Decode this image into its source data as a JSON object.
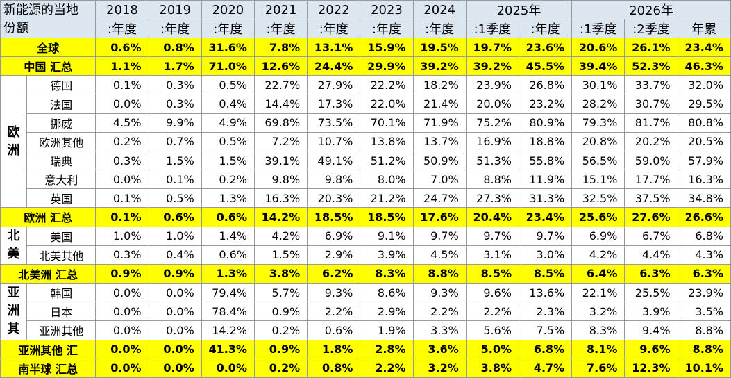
{
  "table": {
    "header": {
      "corner": [
        "新能源的当地",
        "份额"
      ],
      "groups": [
        {
          "label": "2018",
          "subs": [
            ":年度"
          ]
        },
        {
          "label": "2019",
          "subs": [
            ":年度"
          ]
        },
        {
          "label": "2020",
          "subs": [
            ":年度"
          ]
        },
        {
          "label": "2021",
          "subs": [
            ":年度"
          ]
        },
        {
          "label": "2022",
          "subs": [
            ":年度"
          ]
        },
        {
          "label": "2023",
          "subs": [
            ":年度"
          ]
        },
        {
          "label": "2024",
          "subs": [
            ":年度"
          ]
        },
        {
          "label": "2025年",
          "subs": [
            ":1季度",
            ":年度"
          ]
        },
        {
          "label": "2026年",
          "subs": [
            ":1季度",
            ":2季度",
            "年累"
          ]
        }
      ]
    },
    "body": [
      {
        "label": "全球",
        "highlight": true,
        "values": [
          "0.6%",
          "0.8%",
          "31.6%",
          "7.8%",
          "13.1%",
          "15.9%",
          "19.5%",
          "19.7%",
          "23.6%",
          "20.6%",
          "26.1%",
          "23.4%"
        ]
      },
      {
        "label": "中国 汇总",
        "highlight": true,
        "values": [
          "1.1%",
          "1.7%",
          "71.0%",
          "12.6%",
          "24.4%",
          "29.9%",
          "39.2%",
          "39.2%",
          "45.5%",
          "39.4%",
          "52.3%",
          "46.3%"
        ]
      },
      {
        "group": "欧洲",
        "rows": [
          {
            "label": "德国",
            "values": [
              "0.1%",
              "0.3%",
              "0.5%",
              "22.7%",
              "27.9%",
              "22.2%",
              "18.2%",
              "23.9%",
              "26.8%",
              "30.1%",
              "33.7%",
              "32.0%"
            ]
          },
          {
            "label": "法国",
            "values": [
              "0.0%",
              "0.3%",
              "0.4%",
              "14.4%",
              "17.3%",
              "22.0%",
              "21.4%",
              "20.0%",
              "23.2%",
              "28.2%",
              "30.7%",
              "29.5%"
            ]
          },
          {
            "label": "挪威",
            "values": [
              "4.5%",
              "9.9%",
              "4.9%",
              "69.8%",
              "73.5%",
              "70.1%",
              "71.9%",
              "75.2%",
              "80.9%",
              "79.3%",
              "81.7%",
              "80.8%"
            ]
          },
          {
            "label": "欧洲其他",
            "values": [
              "0.2%",
              "0.7%",
              "0.5%",
              "7.2%",
              "10.7%",
              "13.8%",
              "13.7%",
              "16.9%",
              "18.8%",
              "20.8%",
              "20.2%",
              "20.5%"
            ]
          },
          {
            "label": "瑞典",
            "values": [
              "0.3%",
              "1.5%",
              "1.5%",
              "39.1%",
              "49.1%",
              "51.2%",
              "50.9%",
              "51.3%",
              "55.8%",
              "56.5%",
              "59.0%",
              "57.9%"
            ]
          },
          {
            "label": "意大利",
            "values": [
              "0.0%",
              "0.1%",
              "0.2%",
              "9.8%",
              "9.8%",
              "8.0%",
              "7.0%",
              "8.8%",
              "11.9%",
              "15.1%",
              "17.7%",
              "16.3%"
            ]
          },
          {
            "label": "英国",
            "values": [
              "0.1%",
              "0.5%",
              "1.3%",
              "16.3%",
              "20.3%",
              "21.2%",
              "24.7%",
              "27.3%",
              "31.3%",
              "32.5%",
              "37.5%",
              "34.8%"
            ]
          }
        ]
      },
      {
        "label": "欧洲 汇总",
        "highlight": true,
        "values": [
          "0.1%",
          "0.6%",
          "0.6%",
          "14.2%",
          "18.5%",
          "18.5%",
          "17.6%",
          "20.4%",
          "23.4%",
          "25.6%",
          "27.6%",
          "26.6%"
        ]
      },
      {
        "group": "北美",
        "rows": [
          {
            "label": "美国",
            "values": [
              "1.0%",
              "1.0%",
              "1.4%",
              "4.2%",
              "6.9%",
              "9.1%",
              "9.7%",
              "9.7%",
              "9.7%",
              "6.9%",
              "6.7%",
              "6.8%"
            ]
          },
          {
            "label": "北美其他",
            "values": [
              "0.3%",
              "0.4%",
              "0.6%",
              "1.5%",
              "2.9%",
              "3.9%",
              "4.5%",
              "3.1%",
              "3.0%",
              "4.2%",
              "4.4%",
              "4.3%"
            ]
          }
        ]
      },
      {
        "label": "北美洲 汇总",
        "highlight": true,
        "values": [
          "0.9%",
          "0.9%",
          "1.3%",
          "3.8%",
          "6.2%",
          "8.3%",
          "8.8%",
          "8.5%",
          "8.5%",
          "6.4%",
          "6.3%",
          "6.3%"
        ]
      },
      {
        "group": "亚洲其",
        "rows": [
          {
            "label": "韩国",
            "values": [
              "0.0%",
              "0.0%",
              "79.4%",
              "5.7%",
              "9.3%",
              "8.6%",
              "9.3%",
              "9.6%",
              "13.6%",
              "22.1%",
              "25.5%",
              "23.9%"
            ]
          },
          {
            "label": "日本",
            "values": [
              "0.0%",
              "0.0%",
              "78.4%",
              "0.9%",
              "2.2%",
              "2.9%",
              "2.2%",
              "2.2%",
              "2.3%",
              "3.2%",
              "3.9%",
              "3.5%"
            ]
          },
          {
            "label": "亚洲其他",
            "values": [
              "0.0%",
              "0.0%",
              "14.2%",
              "0.2%",
              "0.6%",
              "1.9%",
              "3.3%",
              "5.6%",
              "7.5%",
              "8.3%",
              "9.4%",
              "8.8%"
            ]
          }
        ]
      },
      {
        "label": "亚洲其他 汇",
        "highlight": true,
        "values": [
          "0.0%",
          "0.0%",
          "41.3%",
          "0.9%",
          "1.8%",
          "2.8%",
          "3.6%",
          "5.0%",
          "6.8%",
          "8.1%",
          "9.6%",
          "8.8%"
        ]
      },
      {
        "label": "南半球 汇总",
        "highlight": true,
        "values": [
          "0.0%",
          "0.0%",
          "0.0%",
          "0.2%",
          "0.8%",
          "2.2%",
          "3.2%",
          "3.8%",
          "4.7%",
          "7.6%",
          "12.3%",
          "10.1%"
        ]
      }
    ]
  }
}
